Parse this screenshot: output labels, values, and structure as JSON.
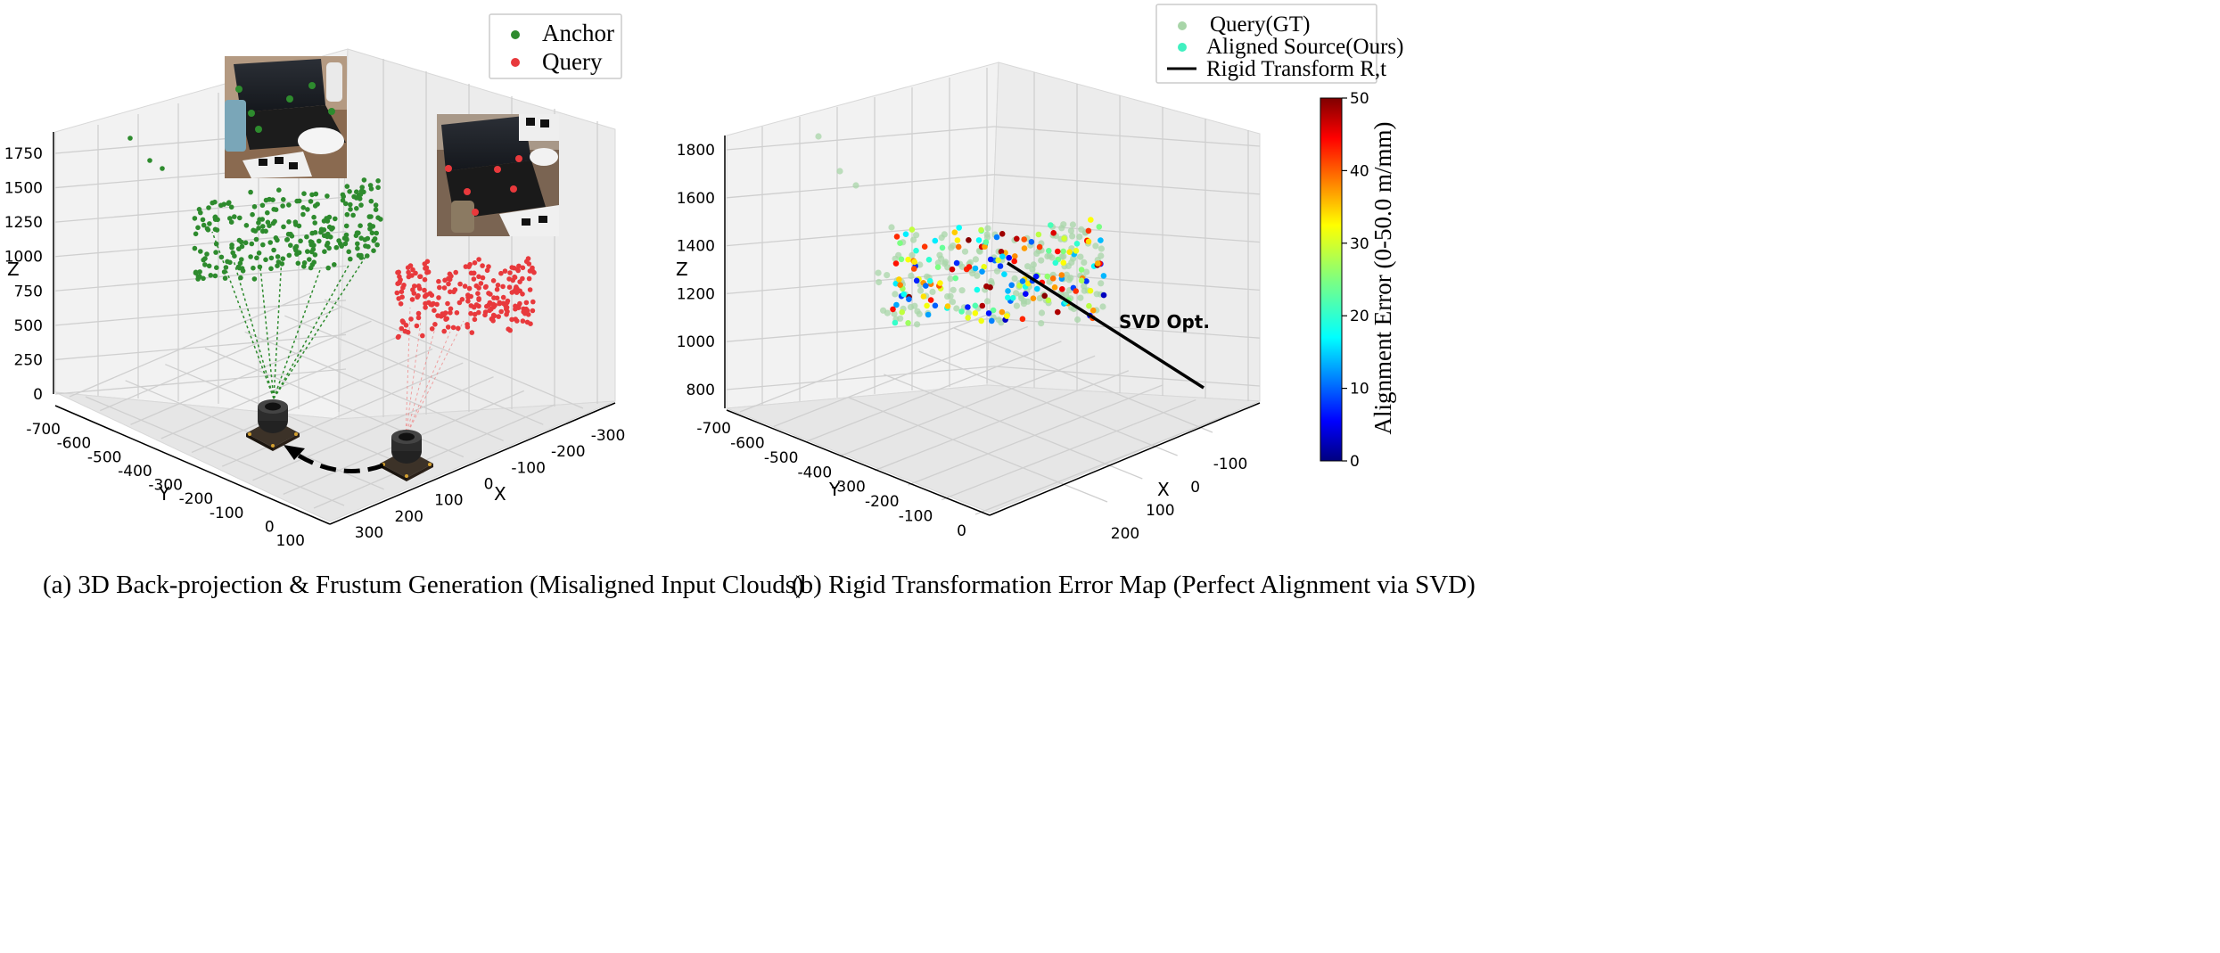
{
  "chart_data": [
    {
      "type": "scatter",
      "subtype": "3d",
      "caption": "(a) 3D Back-projection & Frustum Generation (Misaligned Input Clouds)",
      "xlabel": "X",
      "ylabel": "Y",
      "zlabel": "Z",
      "x_ticks": [
        "300",
        "200",
        "100",
        "0",
        "-100",
        "-200",
        "-300"
      ],
      "y_ticks": [
        "-700",
        "-600",
        "-500",
        "-400",
        "-300",
        "-200",
        "-100",
        "0",
        "100"
      ],
      "z_ticks": [
        "0",
        "250",
        "500",
        "750",
        "1000",
        "1250",
        "1500",
        "1750"
      ],
      "grid": true,
      "legend_position": "top-right",
      "series": [
        {
          "name": "Anchor",
          "color": "#2e8b2e"
        },
        {
          "name": "Query",
          "color": "#e8393c"
        }
      ],
      "icons": [
        "camera-icon",
        "camera-icon",
        "photo-anchor",
        "photo-query",
        "curved-arrow-icon"
      ]
    },
    {
      "type": "scatter",
      "subtype": "3d",
      "caption": "(b) Rigid Transformation Error Map (Perfect Alignment via SVD)",
      "xlabel": "X",
      "ylabel": "Y",
      "zlabel": "Z",
      "x_ticks": [
        "200",
        "100",
        "0",
        "-100"
      ],
      "y_ticks": [
        "-700",
        "-600",
        "-500",
        "-400",
        "-300",
        "-200",
        "-100",
        "0"
      ],
      "z_ticks": [
        "800",
        "1000",
        "1200",
        "1400",
        "1600",
        "1800"
      ],
      "grid": true,
      "legend_position": "top-right",
      "series": [
        {
          "name": "Query(GT)",
          "color": "#a8d5a8"
        },
        {
          "name": "Aligned Source(Ours)",
          "color": "#40f0c0"
        },
        {
          "name": "Rigid Transform R,t",
          "color": "#000000"
        }
      ],
      "annotation": "SVD Opt.",
      "colorbar": {
        "label": "Alignment Error (0-50.0 m/mm)",
        "min": 0,
        "max": 50,
        "ticks": [
          "0",
          "10",
          "20",
          "30",
          "40",
          "50"
        ],
        "colormap": "jet"
      }
    }
  ]
}
